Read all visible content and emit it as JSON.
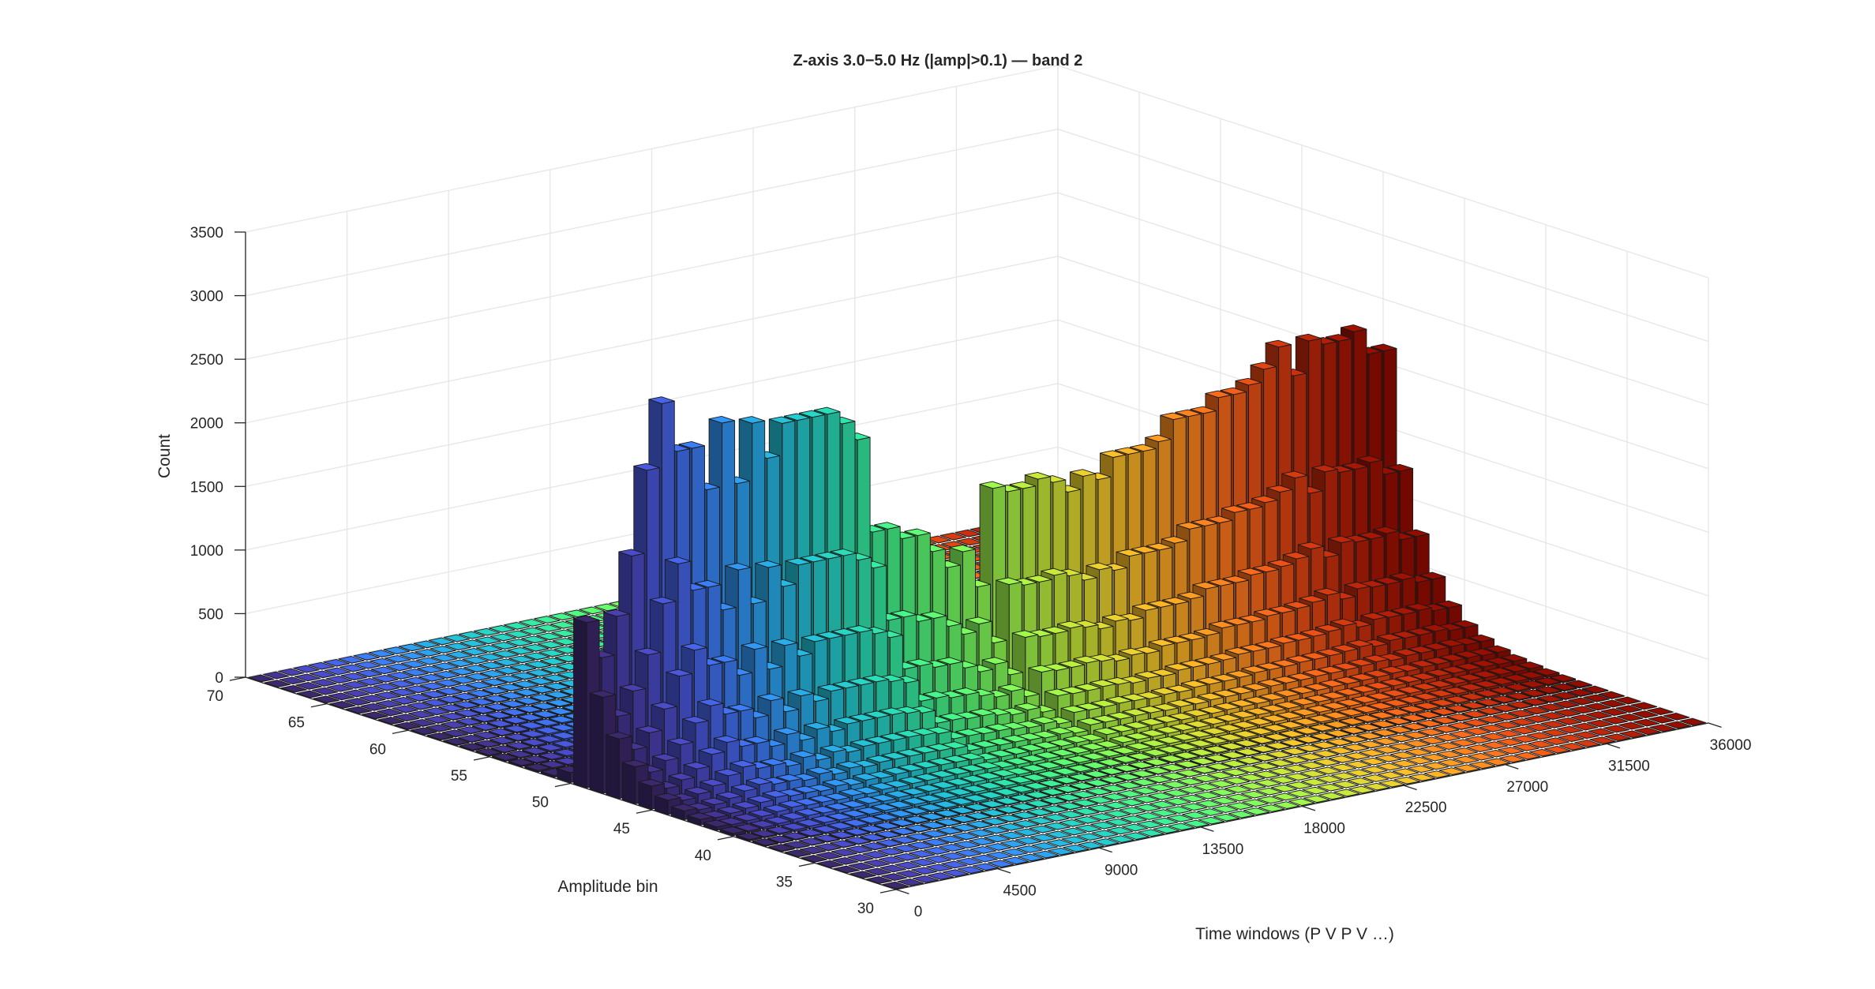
{
  "chart_data": {
    "type": "bar3d",
    "title": "Z-axis  3.0−5.0 Hz   (|amp|>0.1) — band 2",
    "xlabel": "Time windows  (P  V  P  V …)",
    "ylabel": "Amplitude bin",
    "zlabel": "Count",
    "xlim": [
      0,
      36000
    ],
    "ylim": [
      30,
      70
    ],
    "zlim": [
      0,
      3500
    ],
    "x_ticks": [
      "0",
      "4500",
      "9000",
      "13500",
      "18000",
      "22500",
      "27000",
      "31500",
      "36000"
    ],
    "y_ticks": [
      "30",
      "35",
      "40",
      "45",
      "50",
      "55",
      "60",
      "65",
      "70"
    ],
    "z_ticks": [
      "0",
      "500",
      "1000",
      "1500",
      "2000",
      "2500",
      "3000",
      "3500"
    ],
    "colormap": "turbo",
    "grid": true,
    "bin_width": 1000,
    "peak_bin": 49,
    "column_peaks": [
      1300,
      1000,
      1300,
      1750,
      2400,
      2900,
      2500,
      2500,
      2150,
      2650,
      2150,
      2600,
      2300,
      2550,
      2550,
      2550,
      2550,
      2450,
      2300,
      1550,
      1550,
      1450,
      1450,
      1300,
      1150,
      1250,
      950,
      1700,
      1650,
      1650,
      1700,
      1650,
      1550,
      1650,
      1600,
      1750,
      1750,
      1750,
      1800,
      1950,
      1950,
      1950,
      2050,
      2050,
      2100,
      2200,
      2350,
      2100,
      2350,
      2300,
      2300,
      2350,
      2150,
      2150
    ]
  }
}
